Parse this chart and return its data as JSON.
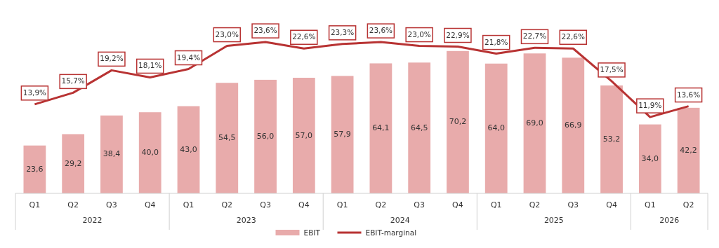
{
  "chart_data": {
    "type": "bar",
    "categories": [
      "Q1",
      "Q2",
      "Q3",
      "Q4",
      "Q1",
      "Q2",
      "Q3",
      "Q4",
      "Q1",
      "Q2",
      "Q3",
      "Q4",
      "Q1",
      "Q2",
      "Q3",
      "Q4",
      "Q1",
      "Q2"
    ],
    "series": [
      {
        "name": "EBIT",
        "color": "#e8abab",
        "values": [
          23.6,
          29.2,
          38.4,
          40.0,
          43.0,
          54.5,
          56.0,
          57.0,
          57.9,
          64.1,
          64.5,
          70.2,
          64.0,
          69.0,
          66.9,
          53.2,
          34.0,
          42.2
        ],
        "value_labels": [
          "23,6",
          "29,2",
          "38,4",
          "40,0",
          "43,0",
          "54,5",
          "56,0",
          "57,0",
          "57,9",
          "64,1",
          "64,5",
          "70,2",
          "64,0",
          "69,0",
          "66,9",
          "53,2",
          "34,0",
          "42,2"
        ]
      },
      {
        "name": "EBIT-marginal",
        "type": "line",
        "axis": "y2",
        "color": "#b83333",
        "values": [
          13.9,
          15.7,
          19.2,
          18.1,
          19.4,
          23.0,
          23.6,
          22.6,
          23.3,
          23.6,
          23.0,
          22.9,
          21.8,
          22.7,
          22.6,
          17.5,
          11.9,
          13.6
        ],
        "value_labels": [
          "13,9%",
          "15,7%",
          "19,2%",
          "18,1%",
          "19,4%",
          "23,0%",
          "23,6%",
          "22,6%",
          "23,3%",
          "23,6%",
          "23,0%",
          "22,9%",
          "21,8%",
          "22,7%",
          "22,6%",
          "17,5%",
          "11,9%",
          "13,6%"
        ]
      }
    ],
    "annotations": [
      "2022",
      "2023",
      "2024",
      "2025",
      "2026"
    ],
    "tick_labels": "x",
    "grid": false,
    "legend": "bottom",
    "line_style": "solid"
  }
}
